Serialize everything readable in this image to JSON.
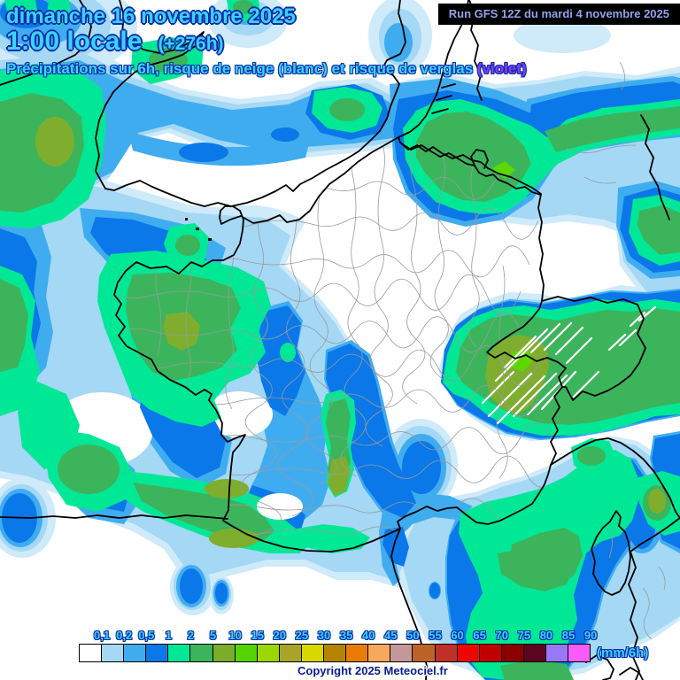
{
  "header": {
    "date_line": "dimanche 16 novembre 2025",
    "time_line": "1:00 locale",
    "offset": "(+276h)",
    "subtitle_main": "Précipitations sur 6h, risque de neige (blanc) et risque de verglas ",
    "subtitle_violet": "(violet)",
    "run_label": "Run GFS 12Z du mardi 4 novembre 2025"
  },
  "legend": {
    "unit": "(mm/6h)",
    "labels": [
      "0,1",
      "0,2",
      "0,5",
      "1",
      "2",
      "5",
      "10",
      "15",
      "20",
      "25",
      "30",
      "35",
      "40",
      "45",
      "50",
      "55",
      "60",
      "65",
      "70",
      "75",
      "80",
      "85",
      "90"
    ],
    "colors": [
      "#ffffff",
      "#a4d8f4",
      "#40acf0",
      "#0a78e8",
      "#00e896",
      "#3cb45c",
      "#7cac2c",
      "#54d400",
      "#9cd800",
      "#a8a428",
      "#d8d800",
      "#b48400",
      "#e87c04",
      "#f8a85c",
      "#c49898",
      "#bc6428",
      "#c03028",
      "#ec0800",
      "#c00000",
      "#8c0000",
      "#5c0420",
      "#9878f8",
      "#f85cf8"
    ]
  },
  "footer": {
    "copyright": "Copyright 2025 Meteociel.fr"
  },
  "map_palette": {
    "trace": "#cfeaf9",
    "p01": "#a4d8f4",
    "p02": "#40acf0",
    "p05": "#0a78e8",
    "p1": "#00e896",
    "p2": "#3cb45c",
    "p5": "#7fae2e",
    "p10": "#5cd800",
    "snow_hatch": "#ffffff",
    "coast": "#000000",
    "dept": "#9a9a9a",
    "white": "#ffffff"
  }
}
